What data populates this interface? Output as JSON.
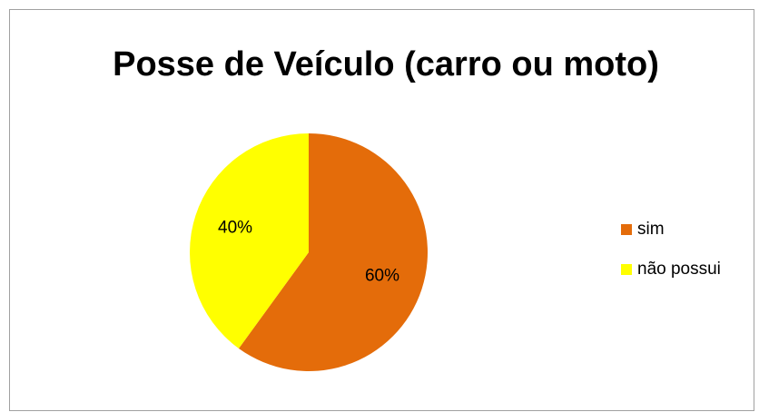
{
  "chart_data": {
    "type": "pie",
    "title": "Posse de Veículo (carro ou moto)",
    "categories": [
      "sim",
      "não possui"
    ],
    "values": [
      60,
      40
    ],
    "value_labels": [
      "60%",
      "40%"
    ],
    "colors": [
      "#e46c0a",
      "#ffff00"
    ],
    "legend": "right"
  }
}
